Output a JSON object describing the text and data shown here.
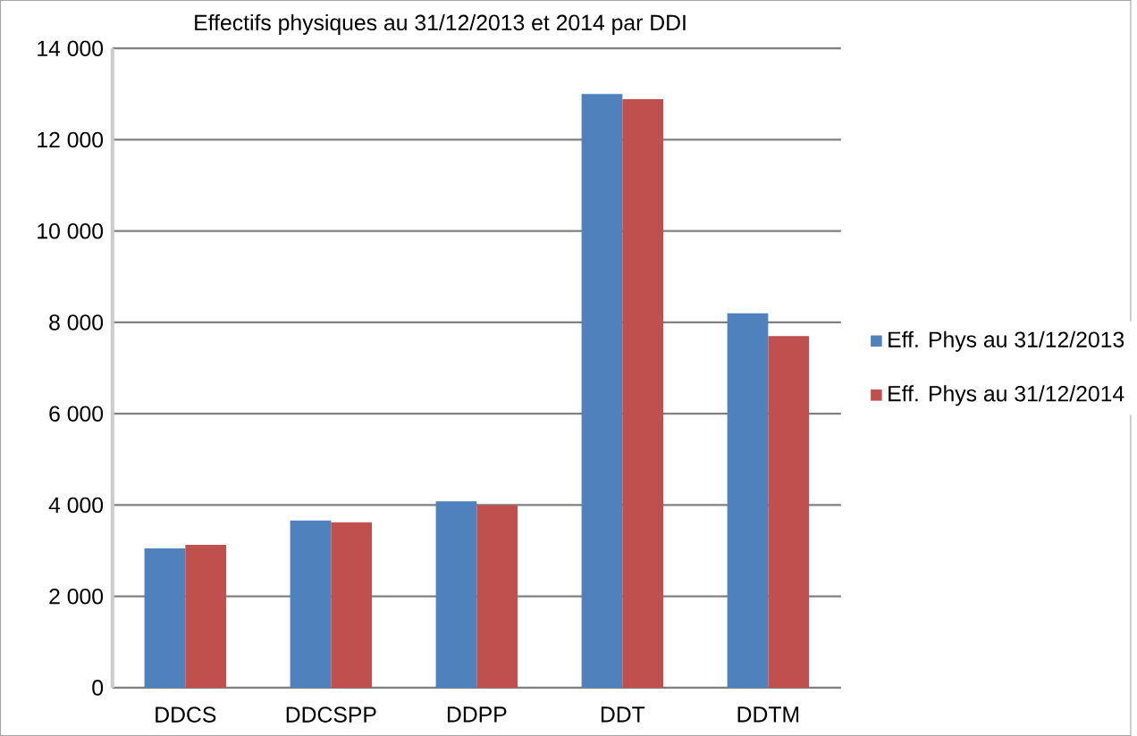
{
  "chart_data": {
    "type": "bar",
    "title": "Effectifs physiques au 31/12/2013 et 2014 par DDI",
    "categories": [
      "DDCS",
      "DDCSPP",
      "DDPP",
      "DDT",
      "DDTM"
    ],
    "series": [
      {
        "name": "Eff. Phys au 31/12/2013",
        "color": "#4f81bd",
        "values": [
          3050,
          3660,
          4080,
          13000,
          8200
        ]
      },
      {
        "name": "Eff. Phys au 31/12/2014",
        "color": "#c0504d",
        "values": [
          3130,
          3620,
          4000,
          12890,
          7700
        ]
      }
    ],
    "ylim": [
      0,
      14000
    ],
    "yticks": [
      {
        "value": 0,
        "label": "0"
      },
      {
        "value": 2000,
        "label": "2 000"
      },
      {
        "value": 4000,
        "label": "4 000"
      },
      {
        "value": 6000,
        "label": "6 000"
      },
      {
        "value": 8000,
        "label": "8 000"
      },
      {
        "value": 10000,
        "label": "10 000"
      },
      {
        "value": 12000,
        "label": "12 000"
      },
      {
        "value": 14000,
        "label": "14 000"
      }
    ],
    "grid": "y",
    "legend": "right"
  }
}
